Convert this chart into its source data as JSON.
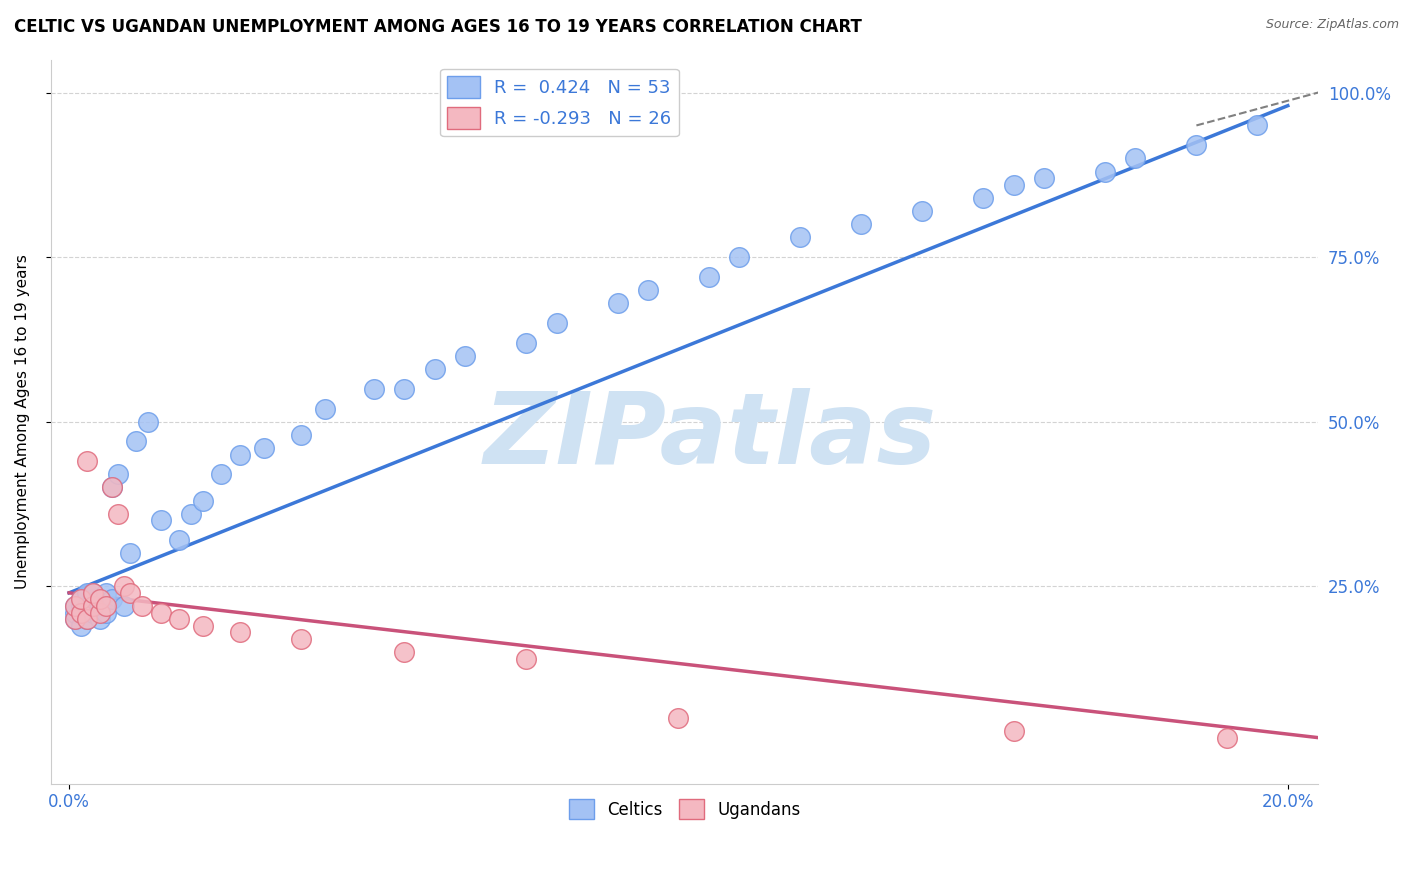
{
  "title": "CELTIC VS UGANDAN UNEMPLOYMENT AMONG AGES 16 TO 19 YEARS CORRELATION CHART",
  "source": "Source: ZipAtlas.com",
  "ylabel": "Unemployment Among Ages 16 to 19 years",
  "xlim": [
    -0.003,
    0.205
  ],
  "ylim": [
    -0.05,
    1.05
  ],
  "y_ticks": [
    0.25,
    0.5,
    0.75,
    1.0
  ],
  "y_tick_labels": [
    "25.0%",
    "50.0%",
    "75.0%",
    "100.0%"
  ],
  "celtics_color": "#a4c2f4",
  "celtics_edge": "#6d9eeb",
  "ugandans_color": "#f4b8c1",
  "ugandans_edge": "#e06b7d",
  "trendline_celtic_color": "#3c78d8",
  "trendline_ugandan_color": "#c9527a",
  "R_celtic": 0.424,
  "N_celtic": 53,
  "R_ugandan": -0.293,
  "N_ugandan": 26,
  "watermark": "ZIPatlas",
  "watermark_color": "#cfe2f3",
  "celtic_x": [
    0.001,
    0.001,
    0.001,
    0.002,
    0.002,
    0.002,
    0.002,
    0.003,
    0.003,
    0.003,
    0.004,
    0.004,
    0.004,
    0.005,
    0.005,
    0.006,
    0.006,
    0.007,
    0.007,
    0.008,
    0.009,
    0.01,
    0.011,
    0.013,
    0.015,
    0.018,
    0.02,
    0.022,
    0.025,
    0.028,
    0.032,
    0.038,
    0.042,
    0.05,
    0.055,
    0.06,
    0.065,
    0.075,
    0.08,
    0.09,
    0.095,
    0.105,
    0.11,
    0.12,
    0.13,
    0.14,
    0.15,
    0.155,
    0.16,
    0.17,
    0.175,
    0.185,
    0.195
  ],
  "celtic_y": [
    0.2,
    0.21,
    0.22,
    0.19,
    0.21,
    0.22,
    0.23,
    0.2,
    0.22,
    0.24,
    0.21,
    0.23,
    0.24,
    0.2,
    0.22,
    0.21,
    0.24,
    0.23,
    0.4,
    0.42,
    0.22,
    0.3,
    0.47,
    0.5,
    0.35,
    0.32,
    0.36,
    0.38,
    0.42,
    0.45,
    0.46,
    0.48,
    0.52,
    0.55,
    0.55,
    0.58,
    0.6,
    0.62,
    0.65,
    0.68,
    0.7,
    0.72,
    0.75,
    0.78,
    0.8,
    0.82,
    0.84,
    0.86,
    0.87,
    0.88,
    0.9,
    0.92,
    0.95
  ],
  "ugandan_x": [
    0.001,
    0.001,
    0.002,
    0.002,
    0.003,
    0.003,
    0.004,
    0.004,
    0.005,
    0.005,
    0.006,
    0.007,
    0.008,
    0.009,
    0.01,
    0.012,
    0.015,
    0.018,
    0.022,
    0.028,
    0.038,
    0.055,
    0.075,
    0.1,
    0.155,
    0.19
  ],
  "ugandan_y": [
    0.2,
    0.22,
    0.21,
    0.23,
    0.2,
    0.44,
    0.22,
    0.24,
    0.21,
    0.23,
    0.22,
    0.4,
    0.36,
    0.25,
    0.24,
    0.22,
    0.21,
    0.2,
    0.19,
    0.18,
    0.17,
    0.15,
    0.14,
    0.05,
    0.03,
    0.02
  ],
  "celtic_trendline_x": [
    0.0,
    0.2
  ],
  "celtic_trendline_y": [
    0.24,
    0.98
  ],
  "ugandan_trendline_x": [
    0.0,
    0.205
  ],
  "ugandan_trendline_y": [
    0.24,
    0.02
  ]
}
